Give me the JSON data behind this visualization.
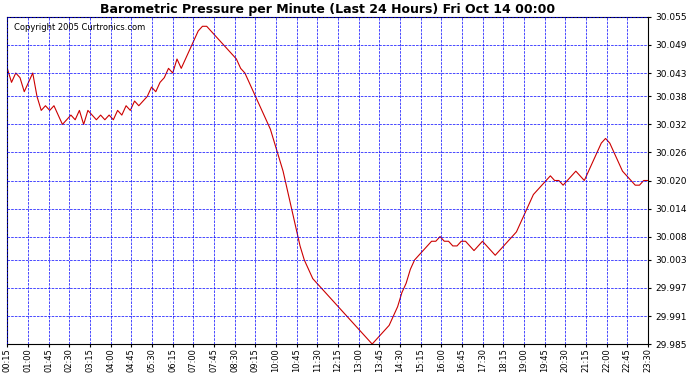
{
  "title": "Barometric Pressure per Minute (Last 24 Hours) Fri Oct 14 00:00",
  "copyright": "Copyright 2005 Curtronics.com",
  "background_color": "#ffffff",
  "plot_background": "#ffffff",
  "grid_color": "#0000ff",
  "line_color": "#cc0000",
  "ylim": [
    29.985,
    30.055
  ],
  "yticks": [
    29.985,
    29.991,
    29.997,
    30.003,
    30.008,
    30.014,
    30.02,
    30.026,
    30.032,
    30.038,
    30.043,
    30.049,
    30.055
  ],
  "xtick_labels": [
    "00:15",
    "01:00",
    "01:45",
    "02:30",
    "03:15",
    "04:00",
    "04:45",
    "05:30",
    "06:15",
    "07:00",
    "07:45",
    "08:30",
    "09:15",
    "10:00",
    "10:45",
    "11:30",
    "12:15",
    "13:00",
    "13:45",
    "14:30",
    "15:15",
    "16:00",
    "16:45",
    "17:30",
    "18:15",
    "19:00",
    "19:45",
    "20:30",
    "21:15",
    "22:00",
    "22:45",
    "23:30"
  ],
  "pressure_data": [
    [
      0,
      30.044
    ],
    [
      1,
      30.041
    ],
    [
      2,
      30.043
    ],
    [
      3,
      30.042
    ],
    [
      4,
      30.039
    ],
    [
      5,
      30.041
    ],
    [
      6,
      30.043
    ],
    [
      7,
      30.038
    ],
    [
      8,
      30.035
    ],
    [
      9,
      30.036
    ],
    [
      10,
      30.035
    ],
    [
      11,
      30.036
    ],
    [
      12,
      30.034
    ],
    [
      13,
      30.032
    ],
    [
      14,
      30.033
    ],
    [
      15,
      30.034
    ],
    [
      16,
      30.033
    ],
    [
      17,
      30.035
    ],
    [
      18,
      30.032
    ],
    [
      19,
      30.035
    ],
    [
      20,
      30.034
    ],
    [
      21,
      30.033
    ],
    [
      22,
      30.034
    ],
    [
      23,
      30.033
    ],
    [
      24,
      30.034
    ],
    [
      25,
      30.033
    ],
    [
      26,
      30.035
    ],
    [
      27,
      30.034
    ],
    [
      28,
      30.036
    ],
    [
      29,
      30.035
    ],
    [
      30,
      30.037
    ],
    [
      31,
      30.036
    ],
    [
      32,
      30.037
    ],
    [
      33,
      30.038
    ],
    [
      34,
      30.04
    ],
    [
      35,
      30.039
    ],
    [
      36,
      30.041
    ],
    [
      37,
      30.042
    ],
    [
      38,
      30.044
    ],
    [
      39,
      30.043
    ],
    [
      40,
      30.046
    ],
    [
      41,
      30.044
    ],
    [
      42,
      30.046
    ],
    [
      43,
      30.048
    ],
    [
      44,
      30.05
    ],
    [
      45,
      30.052
    ],
    [
      46,
      30.053
    ],
    [
      47,
      30.053
    ],
    [
      48,
      30.052
    ],
    [
      49,
      30.051
    ],
    [
      50,
      30.05
    ],
    [
      51,
      30.049
    ],
    [
      52,
      30.048
    ],
    [
      53,
      30.047
    ],
    [
      54,
      30.046
    ],
    [
      55,
      30.044
    ],
    [
      56,
      30.043
    ],
    [
      57,
      30.041
    ],
    [
      58,
      30.039
    ],
    [
      59,
      30.037
    ],
    [
      60,
      30.035
    ],
    [
      61,
      30.033
    ],
    [
      62,
      30.031
    ],
    [
      63,
      30.028
    ],
    [
      64,
      30.025
    ],
    [
      65,
      30.022
    ],
    [
      66,
      30.018
    ],
    [
      67,
      30.014
    ],
    [
      68,
      30.01
    ],
    [
      69,
      30.006
    ],
    [
      70,
      30.003
    ],
    [
      71,
      30.001
    ],
    [
      72,
      29.999
    ],
    [
      73,
      29.998
    ],
    [
      74,
      29.997
    ],
    [
      75,
      29.996
    ],
    [
      76,
      29.995
    ],
    [
      77,
      29.994
    ],
    [
      78,
      29.993
    ],
    [
      79,
      29.992
    ],
    [
      80,
      29.991
    ],
    [
      81,
      29.99
    ],
    [
      82,
      29.989
    ],
    [
      83,
      29.988
    ],
    [
      84,
      29.987
    ],
    [
      85,
      29.986
    ],
    [
      86,
      29.985
    ],
    [
      87,
      29.986
    ],
    [
      88,
      29.987
    ],
    [
      89,
      29.988
    ],
    [
      90,
      29.989
    ],
    [
      91,
      29.991
    ],
    [
      92,
      29.993
    ],
    [
      93,
      29.996
    ],
    [
      94,
      29.998
    ],
    [
      95,
      30.001
    ],
    [
      96,
      30.003
    ],
    [
      97,
      30.004
    ],
    [
      98,
      30.005
    ],
    [
      99,
      30.006
    ],
    [
      100,
      30.007
    ],
    [
      101,
      30.007
    ],
    [
      102,
      30.008
    ],
    [
      103,
      30.007
    ],
    [
      104,
      30.007
    ],
    [
      105,
      30.006
    ],
    [
      106,
      30.006
    ],
    [
      107,
      30.007
    ],
    [
      108,
      30.007
    ],
    [
      109,
      30.006
    ],
    [
      110,
      30.005
    ],
    [
      111,
      30.006
    ],
    [
      112,
      30.007
    ],
    [
      113,
      30.006
    ],
    [
      114,
      30.005
    ],
    [
      115,
      30.004
    ],
    [
      116,
      30.005
    ],
    [
      117,
      30.006
    ],
    [
      118,
      30.007
    ],
    [
      119,
      30.008
    ],
    [
      120,
      30.009
    ],
    [
      121,
      30.011
    ],
    [
      122,
      30.013
    ],
    [
      123,
      30.015
    ],
    [
      124,
      30.017
    ],
    [
      125,
      30.018
    ],
    [
      126,
      30.019
    ],
    [
      127,
      30.02
    ],
    [
      128,
      30.021
    ],
    [
      129,
      30.02
    ],
    [
      130,
      30.02
    ],
    [
      131,
      30.019
    ],
    [
      132,
      30.02
    ],
    [
      133,
      30.021
    ],
    [
      134,
      30.022
    ],
    [
      135,
      30.021
    ],
    [
      136,
      30.02
    ],
    [
      137,
      30.022
    ],
    [
      138,
      30.024
    ],
    [
      139,
      30.026
    ],
    [
      140,
      30.028
    ],
    [
      141,
      30.029
    ],
    [
      142,
      30.028
    ],
    [
      143,
      30.026
    ],
    [
      144,
      30.024
    ],
    [
      145,
      30.022
    ],
    [
      146,
      30.021
    ],
    [
      147,
      30.02
    ],
    [
      148,
      30.019
    ],
    [
      149,
      30.019
    ],
    [
      150,
      30.02
    ],
    [
      151,
      30.02
    ]
  ]
}
